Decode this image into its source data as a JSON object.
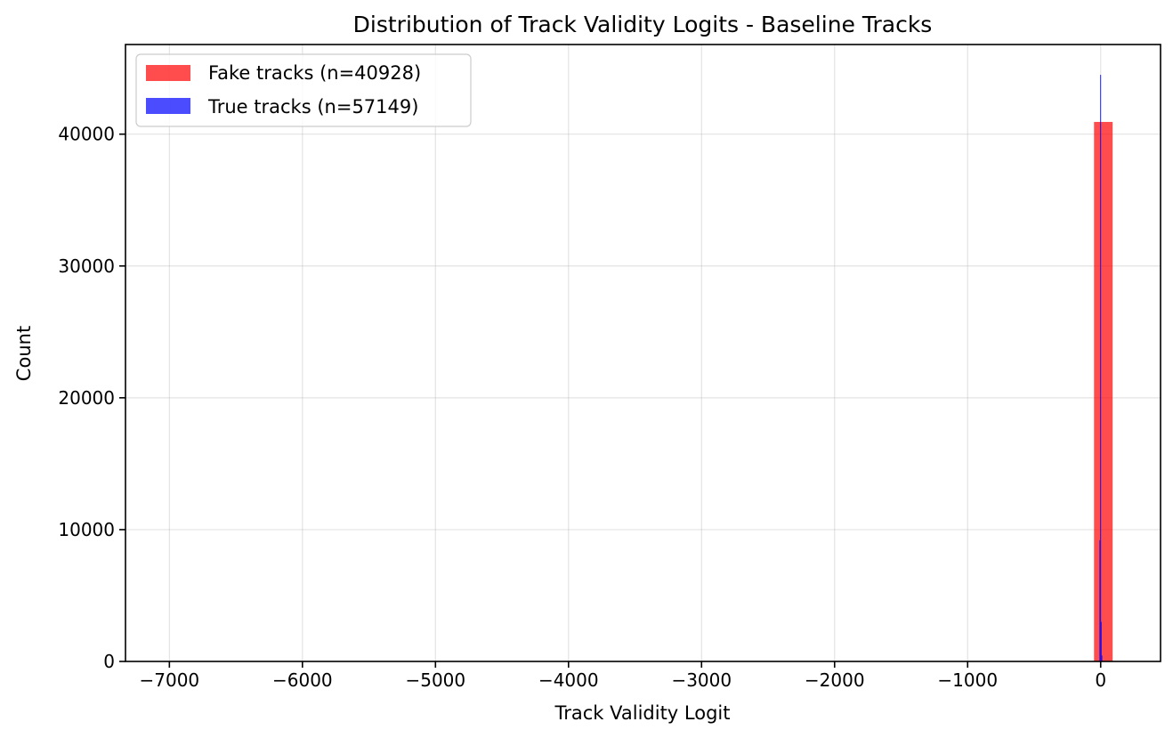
{
  "chart_data": {
    "type": "bar",
    "title": "Distribution of Track Validity Logits - Baseline Tracks",
    "xlabel": "Track Validity Logit",
    "ylabel": "Count",
    "xlim": [
      -7330,
      450
    ],
    "ylim": [
      0,
      46800
    ],
    "xticks": [
      -7000,
      -6000,
      -5000,
      -4000,
      -3000,
      -2000,
      -1000,
      0
    ],
    "xtick_labels": [
      "−7000",
      "−6000",
      "−5000",
      "−4000",
      "−3000",
      "−2000",
      "−1000",
      "0"
    ],
    "yticks": [
      0,
      10000,
      20000,
      30000,
      40000
    ],
    "ytick_labels": [
      "0",
      "10000",
      "20000",
      "30000",
      "40000"
    ],
    "grid": true,
    "legend_position": "top-left",
    "series": [
      {
        "name": "Fake tracks (n=40928)",
        "color": "#ff0000",
        "opacity": 0.7,
        "bins": [
          {
            "x0": -50,
            "x1": 90,
            "count": 40928
          }
        ]
      },
      {
        "name": "True tracks (n=57149)",
        "color": "#0000ff",
        "opacity": 0.7,
        "bins": [
          {
            "x0": -10,
            "x1": -5,
            "count": 9200
          },
          {
            "x0": -5,
            "x1": 0,
            "count": 44500
          },
          {
            "x0": 0,
            "x1": 5,
            "count": 3000
          },
          {
            "x0": 5,
            "x1": 10,
            "count": 449
          }
        ]
      }
    ]
  }
}
